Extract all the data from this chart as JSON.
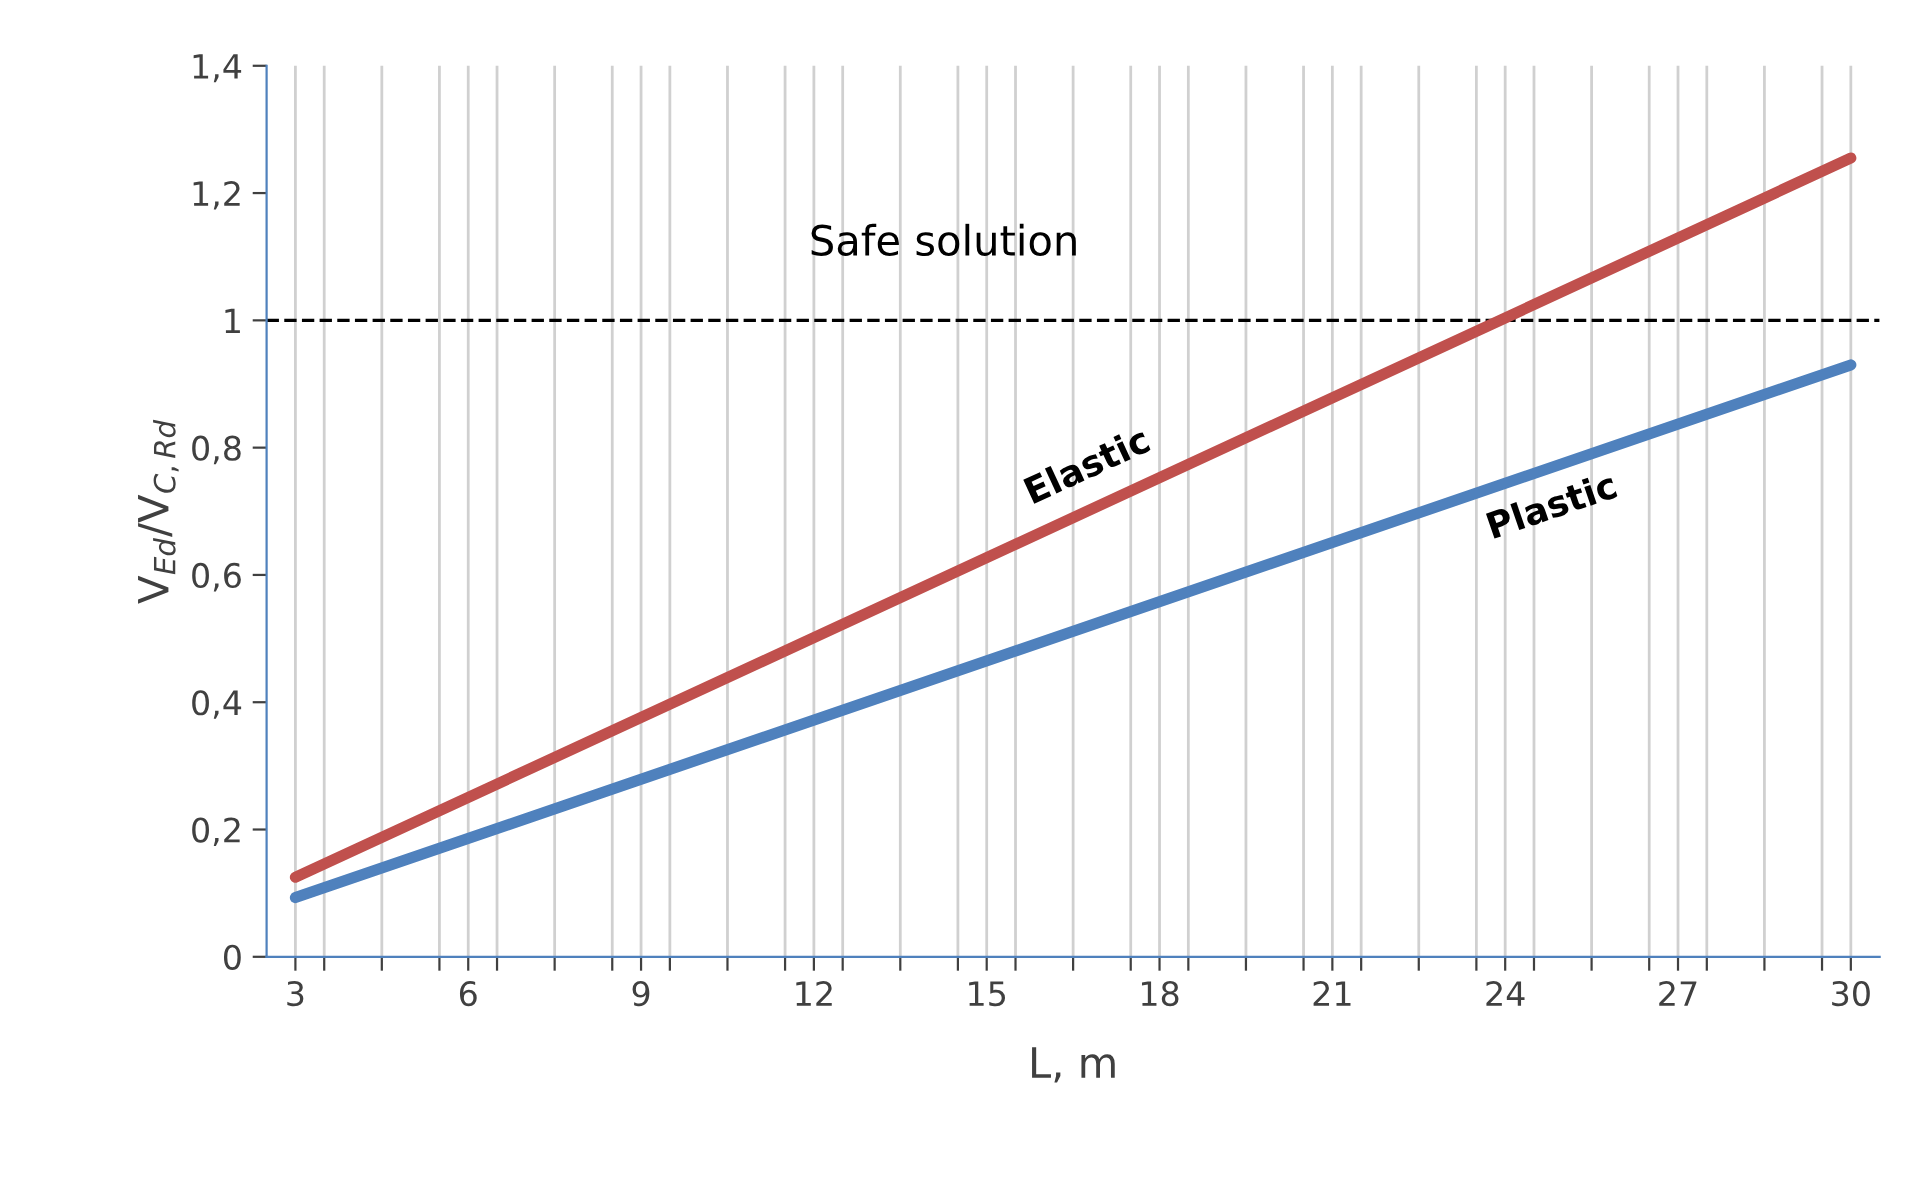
{
  "chart_data": {
    "type": "line",
    "xlabel": "L, m",
    "ylabel": "V$_{Ed}$/V$_{C,Rd}$",
    "x": [
      3,
      30
    ],
    "series": [
      {
        "name": "Elastic",
        "color": "#c0504d",
        "values": [
          0.125,
          1.255
        ]
      },
      {
        "name": "Plastic",
        "color": "#4f81bd",
        "values": [
          0.093,
          0.93
        ]
      }
    ],
    "xlim": [
      2.5,
      30.5
    ],
    "xticks": [
      3,
      6,
      9,
      12,
      15,
      18,
      21,
      24,
      27,
      30,
      {
        "value": 3.5,
        "label": null
      },
      {
        "value": 4.5,
        "label": null
      },
      {
        "value": 5.5,
        "label": null
      },
      {
        "value": 6.5,
        "label": null
      },
      {
        "value": 7.5,
        "label": null
      },
      {
        "value": 8.5,
        "label": null
      },
      {
        "value": 9.5,
        "label": null
      },
      {
        "value": 10.5,
        "label": null
      },
      {
        "value": 11.5,
        "label": null
      },
      {
        "value": 12.5,
        "label": null
      },
      {
        "value": 13.5,
        "label": null
      },
      {
        "value": 14.5,
        "label": null
      },
      {
        "value": 15.5,
        "label": null
      },
      {
        "value": 16.5,
        "label": null
      },
      {
        "value": 17.5,
        "label": null
      },
      {
        "value": 18.5,
        "label": null
      },
      {
        "value": 19.5,
        "label": null
      },
      {
        "value": 20.5,
        "label": null
      },
      {
        "value": 21.5,
        "label": null
      },
      {
        "value": 22.5,
        "label": null
      },
      {
        "value": 23.5,
        "label": null
      },
      {
        "value": 24.5,
        "label": null
      },
      {
        "value": 25.5,
        "label": null
      },
      {
        "value": 26.5,
        "label": null
      },
      {
        "value": 27.5,
        "label": null
      },
      {
        "value": 28.5,
        "label": null
      },
      {
        "value": 29.5,
        "label": null
      }
    ],
    "ylim": [
      0,
      1.4
    ],
    "yticks": [
      0,
      {
        "value": 0.2,
        "label": "0,2"
      },
      {
        "value": 0.4,
        "label": "0,4"
      },
      {
        "value": 0.6,
        "label": "0,6"
      },
      {
        "value": 0.8,
        "label": "0,8"
      },
      1,
      {
        "value": 1.2,
        "label": "1,2"
      },
      {
        "value": 1.4,
        "label": "1,4"
      }
    ],
    "grid": "x",
    "legend": false,
    "marker": "none",
    "line_style": "solid",
    "ref_lines": [
      {
        "axis": "y",
        "value": 1,
        "color": "#000000",
        "line_style": "dashed"
      }
    ],
    "annotations": [
      "Safe solution"
    ]
  }
}
